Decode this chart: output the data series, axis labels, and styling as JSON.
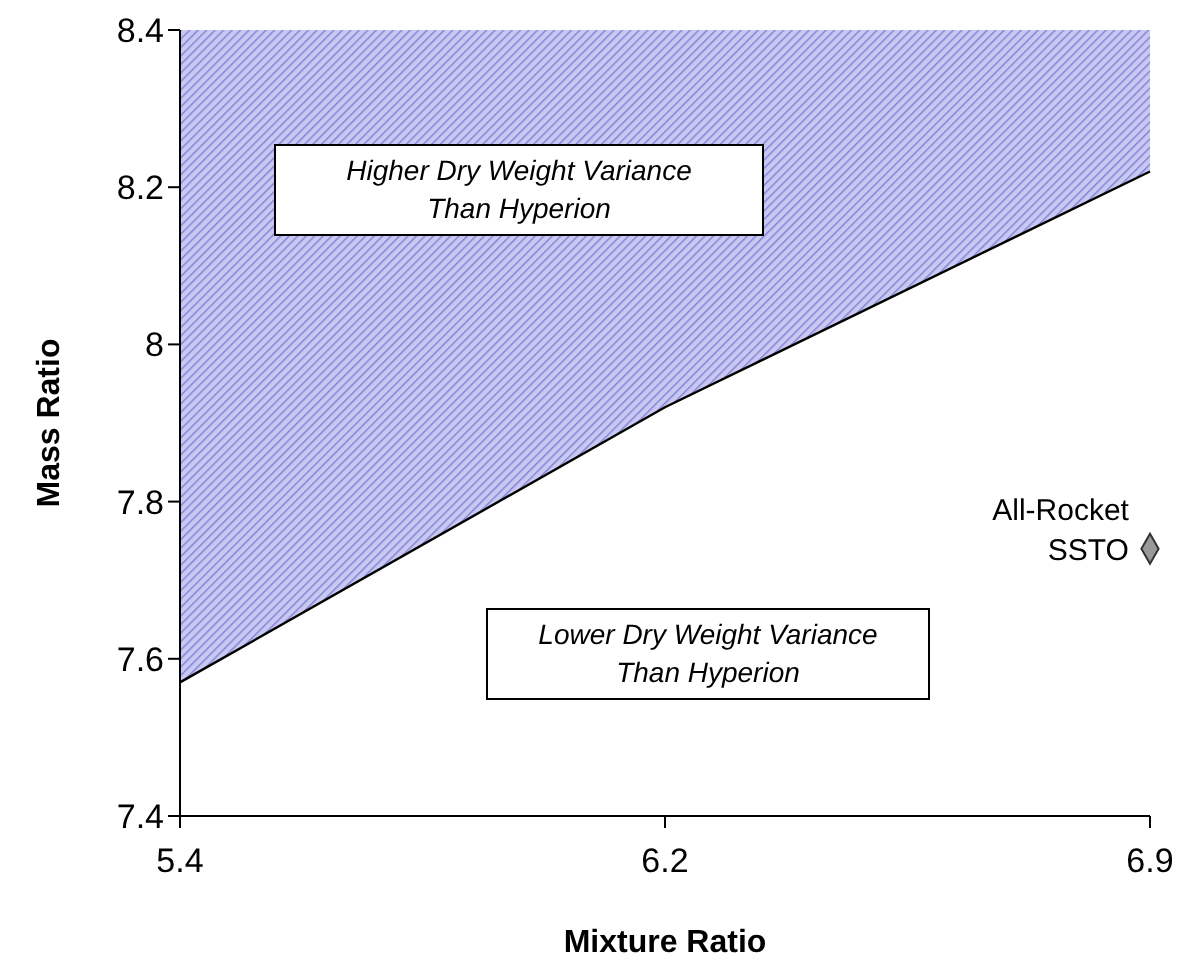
{
  "chart_data": {
    "type": "line",
    "xlabel": "Mixture Ratio",
    "ylabel": "Mass Ratio",
    "categories": [
      "5.4",
      "6.2",
      "6.9"
    ],
    "ylim": [
      7.4,
      8.4
    ],
    "yticks": [
      7.4,
      7.6,
      7.8,
      8,
      8.2,
      8.4
    ],
    "series": [
      {
        "color": "#000000",
        "values": [
          7.57,
          7.92,
          8.22
        ],
        "lower": [
          7.57,
          7.92,
          8.22
        ],
        "upper": [
          8.4,
          8.4,
          8.4
        ]
      },
      {
        "type": "scatter",
        "name": "All-Rocket SSTO",
        "color": "#999999",
        "marker": "diamond",
        "x": [
          "6.9"
        ],
        "values": [
          7.74
        ]
      }
    ],
    "annotations": [
      "Higher Dry Weight Variance Than Hyperion",
      "Lower Dry Weight Variance Than Hyperion"
    ],
    "grid": false,
    "legend": false
  }
}
